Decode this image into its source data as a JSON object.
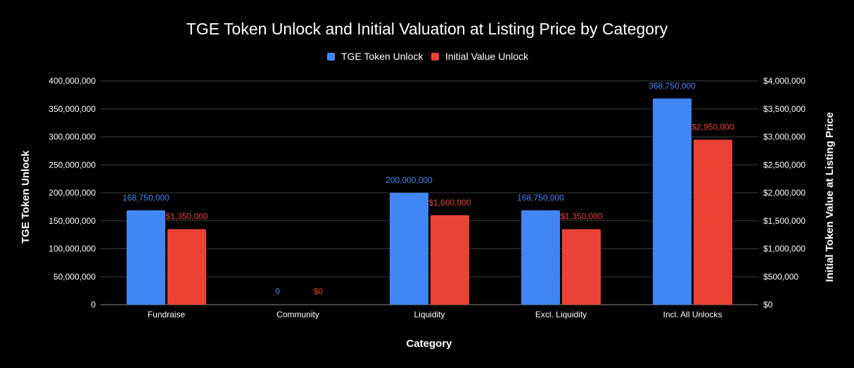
{
  "chart_data": {
    "type": "bar",
    "title": "TGE Token Unlock and Initial Valuation at Listing Price by Category",
    "xlabel": "Category",
    "ylabel": "TGE Token Unlock",
    "y2label": "Initial Token Value at Listing Price",
    "categories": [
      "Fundraise",
      "Community",
      "Liquidity",
      "Excl. Liquidity",
      "Incl. All Unlocks"
    ],
    "series": [
      {
        "name": "TGE Token Unlock",
        "axis": "left",
        "color": "#4285f4",
        "values": [
          168750000,
          0,
          200000000,
          168750000,
          368750000
        ],
        "labels": [
          "168,750,000",
          "0",
          "200,000,000",
          "168,750,000",
          "368,750,000"
        ]
      },
      {
        "name": "Initial Value Unlock",
        "axis": "right",
        "color": "#ea4335",
        "values": [
          1350000,
          0,
          1600000,
          1350000,
          2950000
        ],
        "labels": [
          "$1,350,000",
          "$0",
          "$1,600,000",
          "$1,350,000",
          "$2,950,000"
        ]
      }
    ],
    "ylim": [
      0,
      400000000
    ],
    "y2lim": [
      0,
      4000000
    ],
    "yticks": [
      "0",
      "50,000,000",
      "100,000,000",
      "150,000,000",
      "200,000,000",
      "250,000,000",
      "300,000,000",
      "350,000,000",
      "400,000,000"
    ],
    "y2ticks": [
      "$0",
      "$500,000",
      "$1,000,000",
      "$1,500,000",
      "$2,000,000",
      "$2,500,000",
      "$3,000,000",
      "$3,500,000",
      "$4,000,000"
    ],
    "grid": true,
    "legend_position": "top-center"
  }
}
